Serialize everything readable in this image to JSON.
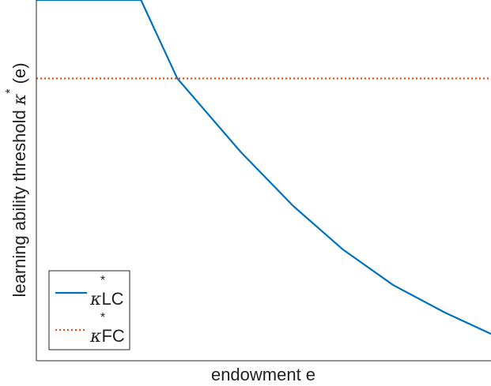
{
  "chart_data": {
    "type": "line",
    "title": "",
    "xlabel": "endowment e",
    "ylabel": {
      "prefix": "learning ability threshold ",
      "symbol": "κ",
      "sup": "*",
      "suffix": " (e)"
    },
    "xlim": [
      0,
      1
    ],
    "ylim": [
      0,
      1
    ],
    "grid": false,
    "legend_position": "bottom-left",
    "series": [
      {
        "name": {
          "symbol": "κ",
          "sup": "*",
          "sub": "LC"
        },
        "style": "solid",
        "color": "#0072BD",
        "x": [
          0.0,
          0.23,
          0.31,
          0.45,
          0.565,
          0.675,
          0.785,
          0.9,
          1.0
        ],
        "y": [
          1.0,
          1.0,
          0.765,
          0.544,
          0.383,
          0.252,
          0.146,
          0.063,
          0.0
        ]
      },
      {
        "name": {
          "symbol": "κ",
          "sup": "*",
          "sub": "FC"
        },
        "style": "dotted",
        "color": "#D95319",
        "x": [
          0.0,
          1.0
        ],
        "y": [
          0.765,
          0.765
        ]
      }
    ]
  }
}
